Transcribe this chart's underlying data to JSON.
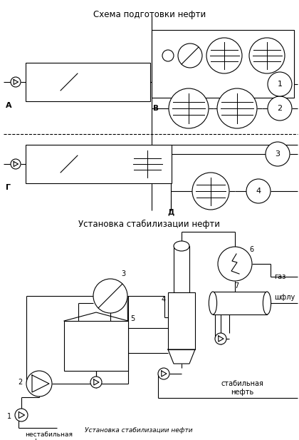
{
  "title_top": "Схема подготовки нефти",
  "title_mid": "Установка стабилизации нефти",
  "title_bottom_label": "Установка стабилизации нефти",
  "bg_color": "#ffffff",
  "line_color": "#000000",
  "figsize": [
    4.2,
    6.17
  ],
  "dpi": 100
}
